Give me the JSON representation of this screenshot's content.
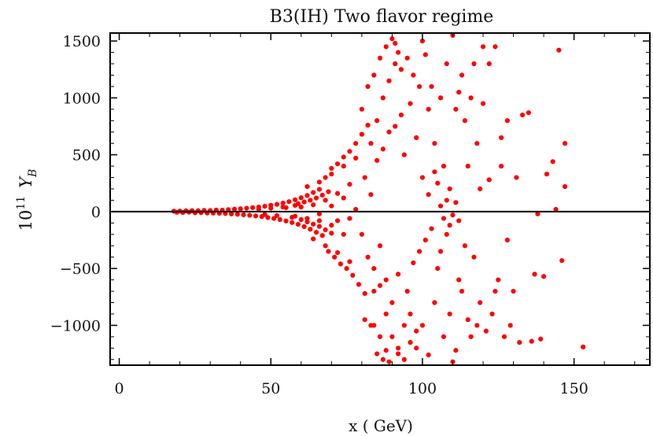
{
  "chart_data": {
    "type": "scatter",
    "title": "B3(IH) Two flavor regime",
    "xlabel": "x ( GeV)",
    "ylabel": {
      "base": "10",
      "exponent": "11",
      "variable": "Y",
      "subscript": "B"
    },
    "xlim": [
      -3,
      175
    ],
    "ylim": [
      -1350,
      1570
    ],
    "xticks": [
      0,
      50,
      100,
      150
    ],
    "yticks": [
      1500,
      1000,
      500,
      0,
      -500,
      -1000
    ],
    "ytick_labels": [
      "1500",
      "1000",
      "500",
      "0",
      "−500",
      "−1000"
    ],
    "zero_line": true,
    "grid": false,
    "marker_color": "#ff0000",
    "series": [
      {
        "points": [
          [
            18,
            4
          ],
          [
            19,
            -6
          ],
          [
            20,
            5
          ],
          [
            21,
            -8
          ],
          [
            22,
            7
          ],
          [
            23,
            -5
          ],
          [
            24,
            9
          ],
          [
            25,
            -10
          ],
          [
            26,
            8
          ],
          [
            27,
            -9
          ],
          [
            28,
            11
          ],
          [
            29,
            -12
          ],
          [
            30,
            10
          ],
          [
            31,
            -13
          ],
          [
            32,
            14
          ],
          [
            33,
            -15
          ],
          [
            34,
            13
          ],
          [
            35,
            -17
          ],
          [
            36,
            18
          ],
          [
            37,
            -20
          ],
          [
            38,
            22
          ],
          [
            39,
            -24
          ],
          [
            40,
            25
          ],
          [
            41,
            -28
          ],
          [
            42,
            30
          ],
          [
            43,
            -32
          ],
          [
            44,
            35
          ],
          [
            45,
            -38
          ],
          [
            46,
            40
          ],
          [
            47,
            -44
          ],
          [
            48,
            47
          ],
          [
            49,
            -52
          ],
          [
            50,
            56
          ],
          [
            51,
            -60
          ],
          [
            52,
            64
          ],
          [
            53,
            -70
          ],
          [
            54,
            75
          ],
          [
            55,
            -82
          ],
          [
            56,
            88
          ],
          [
            57,
            -96
          ],
          [
            58,
            104
          ],
          [
            59,
            -112
          ],
          [
            60,
            122
          ],
          [
            61,
            -132
          ],
          [
            62,
            142
          ],
          [
            63,
            -155
          ],
          [
            64,
            168
          ],
          [
            65,
            -182
          ],
          [
            66,
            196
          ],
          [
            67,
            -210
          ],
          [
            46,
            20
          ],
          [
            48,
            -25
          ],
          [
            50,
            30
          ],
          [
            52,
            -35
          ],
          [
            54,
            40
          ],
          [
            55,
            35
          ],
          [
            57,
            -50
          ],
          [
            58,
            55
          ],
          [
            59,
            70
          ],
          [
            60,
            -70
          ],
          [
            61,
            85
          ],
          [
            62,
            -90
          ],
          [
            63,
            100
          ],
          [
            64,
            -110
          ],
          [
            65,
            120
          ],
          [
            66,
            -130
          ],
          [
            67,
            145
          ],
          [
            68,
            -160
          ],
          [
            69,
            175
          ],
          [
            70,
            -190
          ],
          [
            58,
            -40
          ],
          [
            60,
            40
          ],
          [
            62,
            -60
          ],
          [
            64,
            60
          ],
          [
            66,
            -80
          ],
          [
            68,
            100
          ],
          [
            70,
            -120
          ],
          [
            72,
            160
          ],
          [
            74,
            -200
          ],
          [
            76,
            240
          ],
          [
            62,
            220
          ],
          [
            64,
            -240
          ],
          [
            66,
            260
          ],
          [
            68,
            -300
          ],
          [
            70,
            330
          ],
          [
            72,
            -360
          ],
          [
            74,
            400
          ],
          [
            76,
            -440
          ],
          [
            78,
            470
          ],
          [
            66,
            -20
          ],
          [
            68,
            300
          ],
          [
            69,
            -350
          ],
          [
            70,
            380
          ],
          [
            71,
            -400
          ],
          [
            72,
            420
          ],
          [
            73,
            -460
          ],
          [
            74,
            480
          ],
          [
            75,
            -500
          ],
          [
            76,
            530
          ],
          [
            77,
            -560
          ],
          [
            78,
            600
          ],
          [
            79,
            -640
          ],
          [
            80,
            680
          ],
          [
            81,
            -720
          ],
          [
            82,
            760
          ],
          [
            70,
            50
          ],
          [
            72,
            -80
          ],
          [
            74,
            120
          ],
          [
            76,
            -60
          ],
          [
            78,
            20
          ],
          [
            80,
            900
          ],
          [
            81,
            -950
          ],
          [
            82,
            1100
          ],
          [
            83,
            -1000
          ],
          [
            84,
            1200
          ],
          [
            85,
            -1250
          ],
          [
            86,
            1350
          ],
          [
            87,
            -1300
          ],
          [
            88,
            1450
          ],
          [
            89,
            -1320
          ],
          [
            83,
            600
          ],
          [
            84,
            -700
          ],
          [
            85,
            800
          ],
          [
            86,
            -650
          ],
          [
            87,
            1000
          ],
          [
            88,
            -900
          ],
          [
            89,
            1150
          ],
          [
            90,
            -1100
          ],
          [
            91,
            1300
          ],
          [
            92,
            -1200
          ],
          [
            80,
            -200
          ],
          [
            81,
            300
          ],
          [
            82,
            -400
          ],
          [
            83,
            150
          ],
          [
            84,
            -500
          ],
          [
            85,
            450
          ],
          [
            86,
            -300
          ],
          [
            87,
            550
          ],
          [
            88,
            -600
          ],
          [
            89,
            700
          ],
          [
            90,
            1520
          ],
          [
            91,
            1480
          ],
          [
            92,
            1400
          ],
          [
            93,
            1250
          ],
          [
            94,
            -1300
          ],
          [
            95,
            1350
          ],
          [
            96,
            -1150
          ],
          [
            97,
            1200
          ],
          [
            98,
            -1050
          ],
          [
            99,
            1100
          ],
          [
            90,
            -800
          ],
          [
            91,
            750
          ],
          [
            92,
            -550
          ],
          [
            93,
            850
          ],
          [
            94,
            500
          ],
          [
            95,
            -700
          ],
          [
            96,
            950
          ],
          [
            97,
            -450
          ],
          [
            98,
            650
          ],
          [
            99,
            -350
          ],
          [
            88,
            -1220
          ],
          [
            86,
            -1100
          ],
          [
            84,
            -1000
          ],
          [
            92,
            -1250
          ],
          [
            94,
            -1000
          ],
          [
            96,
            -900
          ],
          [
            98,
            -1200
          ],
          [
            100,
            -1000
          ],
          [
            102,
            900
          ],
          [
            104,
            -800
          ],
          [
            100,
            1500
          ],
          [
            101,
            1380
          ],
          [
            102,
            -1260
          ],
          [
            103,
            1100
          ],
          [
            104,
            600
          ],
          [
            105,
            -500
          ],
          [
            106,
            1000
          ],
          [
            107,
            -1100
          ],
          [
            108,
            1300
          ],
          [
            109,
            -900
          ],
          [
            100,
            300
          ],
          [
            101,
            -250
          ],
          [
            102,
            150
          ],
          [
            103,
            -150
          ],
          [
            104,
            350
          ],
          [
            105,
            250
          ],
          [
            106,
            -350
          ],
          [
            107,
            400
          ],
          [
            108,
            -200
          ],
          [
            109,
            200
          ],
          [
            110,
            1550
          ],
          [
            111,
            -1220
          ],
          [
            112,
            1050
          ],
          [
            113,
            -700
          ],
          [
            114,
            800
          ],
          [
            115,
            -950
          ],
          [
            116,
            1000
          ],
          [
            117,
            -400
          ],
          [
            118,
            600
          ],
          [
            119,
            -800
          ],
          [
            110,
            -1320
          ],
          [
            111,
            900
          ],
          [
            112,
            -600
          ],
          [
            113,
            1200
          ],
          [
            114,
            -300
          ],
          [
            115,
            400
          ],
          [
            116,
            -1100
          ],
          [
            117,
            1300
          ],
          [
            118,
            -1000
          ],
          [
            119,
            200
          ],
          [
            120,
            1450
          ],
          [
            121,
            -1050
          ],
          [
            122,
            1300
          ],
          [
            123,
            -900
          ],
          [
            124,
            1450
          ],
          [
            125,
            -600
          ],
          [
            126,
            650
          ],
          [
            127,
            -1100
          ],
          [
            128,
            800
          ],
          [
            129,
            -1000
          ],
          [
            120,
            950
          ],
          [
            122,
            280
          ],
          [
            124,
            -700
          ],
          [
            126,
            400
          ],
          [
            128,
            -250
          ],
          [
            130,
            -700
          ],
          [
            131,
            300
          ],
          [
            132,
            -1150
          ],
          [
            133,
            850
          ],
          [
            135,
            870
          ],
          [
            136,
            -1140
          ],
          [
            137,
            -550
          ],
          [
            138,
            -20
          ],
          [
            139,
            -1120
          ],
          [
            140,
            -570
          ],
          [
            141,
            330
          ],
          [
            143,
            440
          ],
          [
            144,
            20
          ],
          [
            145,
            1420
          ],
          [
            146,
            -430
          ],
          [
            147,
            600
          ],
          [
            147,
            220
          ],
          [
            153,
            -1190
          ],
          [
            106,
            50
          ],
          [
            107,
            -60
          ],
          [
            108,
            100
          ],
          [
            109,
            -120
          ],
          [
            110,
            -30
          ],
          [
            111,
            80
          ],
          [
            112,
            -80
          ]
        ]
      }
    ]
  }
}
